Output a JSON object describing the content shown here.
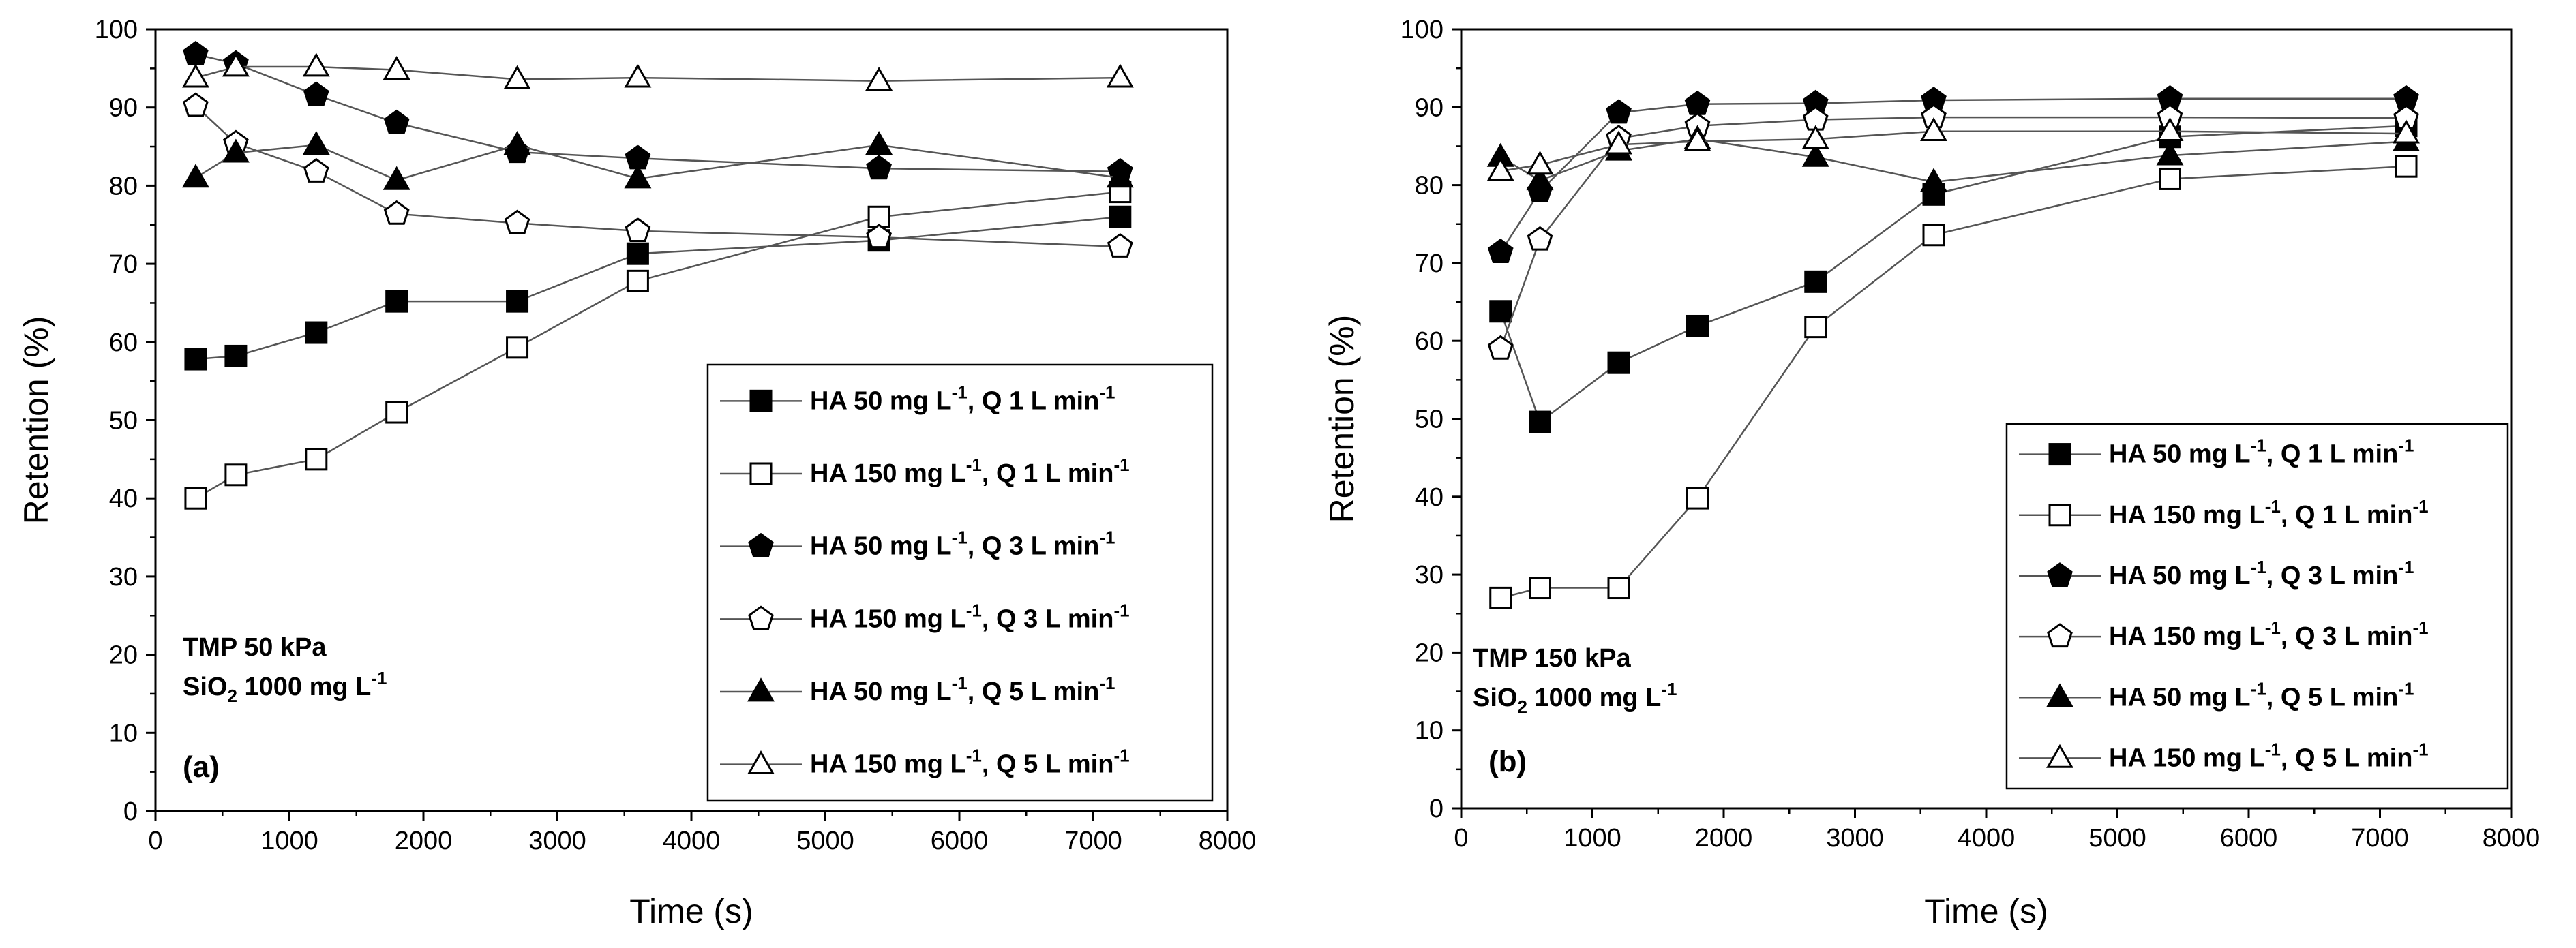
{
  "chart_data": [
    {
      "type": "line",
      "panel_label": "(a)",
      "xlabel": "Time (s)",
      "ylabel": "Retention (%)",
      "xlim": [
        0,
        8000
      ],
      "ylim": [
        0,
        100
      ],
      "x_ticks": [
        0,
        1000,
        2000,
        3000,
        4000,
        5000,
        6000,
        7000,
        8000
      ],
      "y_ticks": [
        0,
        10,
        20,
        30,
        40,
        50,
        60,
        70,
        80,
        90,
        100
      ],
      "annotations": [
        {
          "text": "TMP 50 kPa"
        },
        {
          "text": "SiO",
          "sub": "2",
          "after": " 1000 mg L",
          "sup": "-1"
        }
      ],
      "legend_position": "lower-right",
      "series": [
        {
          "name": "HA 50 mg L-1, Q 1 L min-1",
          "label_parts": [
            "HA 50 mg L",
            "-1",
            ", Q 1 L min",
            "-1"
          ],
          "marker": "square",
          "filled": true,
          "x": [
            300,
            600,
            1200,
            1800,
            2700,
            3600,
            5400,
            7200
          ],
          "y": [
            57.8,
            58.2,
            61.2,
            65.2,
            65.2,
            71.3,
            73.0,
            76.0
          ]
        },
        {
          "name": "HA 150 mg L-1, Q 1 L min-1",
          "label_parts": [
            "HA 150 mg L",
            "-1",
            ", Q 1 L min",
            "-1"
          ],
          "marker": "square",
          "filled": false,
          "x": [
            300,
            600,
            1200,
            1800,
            2700,
            3600,
            5400,
            7200
          ],
          "y": [
            40.0,
            43.0,
            45.0,
            51.0,
            59.3,
            67.8,
            76.0,
            79.2
          ]
        },
        {
          "name": "HA 50 mg L-1, Q 3 L min-1",
          "label_parts": [
            "HA 50 mg L",
            "-1",
            ", Q 3 L min",
            "-1"
          ],
          "marker": "pentagon",
          "filled": true,
          "x": [
            300,
            600,
            1200,
            1800,
            2700,
            3600,
            5400,
            7200
          ],
          "y": [
            96.8,
            95.6,
            91.6,
            88.0,
            84.3,
            83.5,
            82.2,
            81.8
          ]
        },
        {
          "name": "HA 150 mg L-1, Q 3 L min-1",
          "label_parts": [
            "HA 150 mg L",
            "-1",
            ", Q 3 L min",
            "-1"
          ],
          "marker": "pentagon",
          "filled": false,
          "x": [
            300,
            600,
            1200,
            1800,
            2700,
            3600,
            5400,
            7200
          ],
          "y": [
            90.2,
            85.4,
            81.8,
            76.4,
            75.2,
            74.2,
            73.4,
            72.2
          ]
        },
        {
          "name": "HA 50 mg L-1, Q 5 L min-1",
          "label_parts": [
            "HA 50 mg L",
            "-1",
            ", Q 5 L min",
            "-1"
          ],
          "marker": "triangle",
          "filled": true,
          "x": [
            300,
            600,
            1200,
            1800,
            2700,
            3600,
            5400,
            7200
          ],
          "y": [
            81.0,
            84.2,
            85.2,
            80.7,
            85.2,
            80.9,
            85.2,
            81.0
          ]
        },
        {
          "name": "HA 150 mg L-1, Q 5 L min-1",
          "label_parts": [
            "HA 150 mg L",
            "-1",
            ", Q 5 L min",
            "-1"
          ],
          "marker": "triangle",
          "filled": false,
          "x": [
            300,
            600,
            1200,
            1800,
            2700,
            3600,
            5400,
            7200
          ],
          "y": [
            93.8,
            95.2,
            95.2,
            94.8,
            93.6,
            93.8,
            93.4,
            93.8
          ]
        }
      ]
    },
    {
      "type": "line",
      "panel_label": "(b)",
      "xlabel": "Time (s)",
      "ylabel": "Retention (%)",
      "xlim": [
        0,
        8000
      ],
      "ylim": [
        0,
        100
      ],
      "x_ticks": [
        0,
        1000,
        2000,
        3000,
        4000,
        5000,
        6000,
        7000,
        8000
      ],
      "y_ticks": [
        0,
        10,
        20,
        30,
        40,
        50,
        60,
        70,
        80,
        90,
        100
      ],
      "annotations": [
        {
          "text": "TMP 150 kPa"
        },
        {
          "text": "SiO",
          "sub": "2",
          "after": " 1000 mg L",
          "sup": "-1"
        }
      ],
      "legend_position": "lower-right",
      "series": [
        {
          "name": "HA 50 mg L-1, Q 1 L min-1",
          "label_parts": [
            "HA 50 mg L",
            "-1",
            ", Q 1 L min",
            "-1"
          ],
          "marker": "square",
          "filled": true,
          "x": [
            300,
            600,
            1200,
            1800,
            2700,
            3600,
            5400,
            7200
          ],
          "y": [
            63.8,
            49.6,
            57.2,
            61.9,
            67.6,
            78.8,
            86.2,
            87.6
          ]
        },
        {
          "name": "HA 150 mg L-1, Q 1 L min-1",
          "label_parts": [
            "HA 150 mg L",
            "-1",
            ", Q 1 L min",
            "-1"
          ],
          "marker": "square",
          "filled": false,
          "x": [
            300,
            600,
            1200,
            1800,
            2700,
            3600,
            5400,
            7200
          ],
          "y": [
            27.0,
            28.3,
            28.3,
            39.8,
            61.8,
            73.6,
            80.8,
            82.4
          ]
        },
        {
          "name": "HA 50 mg L-1, Q 3 L min-1",
          "label_parts": [
            "HA 50 mg L",
            "-1",
            ", Q 3 L min",
            "-1"
          ],
          "marker": "pentagon",
          "filled": true,
          "x": [
            300,
            600,
            1200,
            1800,
            2700,
            3600,
            5400,
            7200
          ],
          "y": [
            71.4,
            79.2,
            89.3,
            90.4,
            90.5,
            90.9,
            91.1,
            91.1
          ]
        },
        {
          "name": "HA 150 mg L-1, Q 3 L min-1",
          "label_parts": [
            "HA 150 mg L",
            "-1",
            ", Q 3 L min",
            "-1"
          ],
          "marker": "pentagon",
          "filled": false,
          "x": [
            300,
            600,
            1200,
            1800,
            2700,
            3600,
            5400,
            7200
          ],
          "y": [
            59.0,
            73.0,
            86.0,
            87.6,
            88.4,
            88.7,
            88.7,
            88.6
          ]
        },
        {
          "name": "HA 50 mg L-1, Q 5 L min-1",
          "label_parts": [
            "HA 50 mg L",
            "-1",
            ", Q 5 L min",
            "-1"
          ],
          "marker": "triangle",
          "filled": true,
          "x": [
            300,
            600,
            1200,
            1800,
            2700,
            3600,
            5400,
            7200
          ],
          "y": [
            83.6,
            80.6,
            84.4,
            85.9,
            83.6,
            80.4,
            83.8,
            85.6
          ]
        },
        {
          "name": "HA 150 mg L-1, Q 5 L min-1",
          "label_parts": [
            "HA 150 mg L",
            "-1",
            ", Q 5 L min",
            "-1"
          ],
          "marker": "triangle",
          "filled": false,
          "x": [
            300,
            600,
            1200,
            1800,
            2700,
            3600,
            5400,
            7200
          ],
          "y": [
            81.8,
            82.6,
            85.2,
            85.6,
            85.9,
            86.9,
            86.9,
            86.6
          ]
        }
      ]
    }
  ],
  "colors": {
    "ink": "#000000",
    "line": "#555555",
    "background": "#ffffff"
  }
}
